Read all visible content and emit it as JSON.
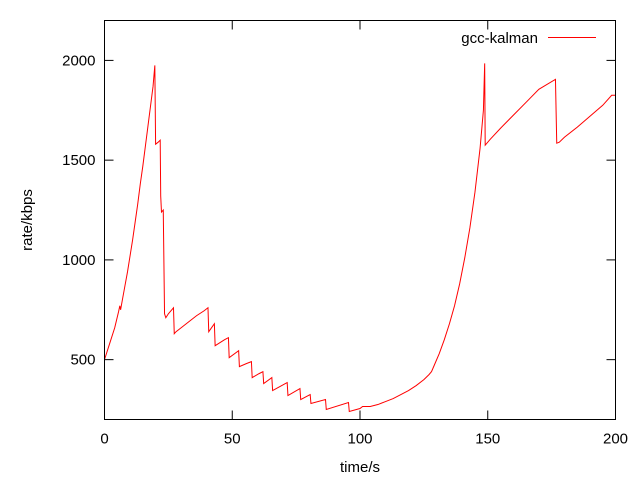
{
  "chart_data": {
    "type": "line",
    "title": "",
    "xlabel": "time/s",
    "ylabel": "rate/kbps",
    "xlim": [
      0,
      200
    ],
    "ylim": [
      200,
      2200
    ],
    "xticks": [
      0,
      50,
      100,
      150,
      200
    ],
    "yticks": [
      500,
      1000,
      1500,
      2000
    ],
    "grid": false,
    "legend_position": "top-right",
    "series": [
      {
        "name": "gcc-kalman",
        "color": "#ff0000",
        "points": [
          [
            0,
            500
          ],
          [
            2,
            580
          ],
          [
            4,
            660
          ],
          [
            5.5,
            740
          ],
          [
            6,
            770
          ],
          [
            6.3,
            750
          ],
          [
            7,
            800
          ],
          [
            8,
            870
          ],
          [
            9,
            940
          ],
          [
            10,
            1020
          ],
          [
            11,
            1100
          ],
          [
            12,
            1190
          ],
          [
            13,
            1280
          ],
          [
            14,
            1380
          ],
          [
            15,
            1470
          ],
          [
            16,
            1570
          ],
          [
            17,
            1670
          ],
          [
            18,
            1770
          ],
          [
            19,
            1870
          ],
          [
            19.7,
            1975
          ],
          [
            20,
            1580
          ],
          [
            21,
            1590
          ],
          [
            21.8,
            1600
          ],
          [
            22,
            1320
          ],
          [
            22.3,
            1240
          ],
          [
            23,
            1250
          ],
          [
            23.5,
            730
          ],
          [
            24,
            710
          ],
          [
            25,
            730
          ],
          [
            26,
            745
          ],
          [
            27,
            760
          ],
          [
            27.3,
            630
          ],
          [
            28,
            640
          ],
          [
            30,
            660
          ],
          [
            33,
            690
          ],
          [
            36,
            720
          ],
          [
            39,
            745
          ],
          [
            40.5,
            760
          ],
          [
            40.8,
            640
          ],
          [
            43,
            680
          ],
          [
            43.3,
            570
          ],
          [
            47,
            600
          ],
          [
            48.5,
            610
          ],
          [
            48.8,
            510
          ],
          [
            52.5,
            545
          ],
          [
            52.8,
            465
          ],
          [
            55.5,
            480
          ],
          [
            57.5,
            490
          ],
          [
            57.8,
            410
          ],
          [
            60.5,
            430
          ],
          [
            62,
            440
          ],
          [
            62.3,
            380
          ],
          [
            65.5,
            410
          ],
          [
            65.8,
            345
          ],
          [
            71.5,
            385
          ],
          [
            71.8,
            320
          ],
          [
            76.5,
            355
          ],
          [
            76.8,
            300
          ],
          [
            80.5,
            325
          ],
          [
            80.8,
            280
          ],
          [
            86.5,
            300
          ],
          [
            86.8,
            250
          ],
          [
            95.5,
            285
          ],
          [
            95.8,
            240
          ],
          [
            100,
            255
          ],
          [
            101,
            265
          ],
          [
            104,
            265
          ],
          [
            107,
            275
          ],
          [
            110,
            290
          ],
          [
            113,
            305
          ],
          [
            116,
            325
          ],
          [
            119,
            345
          ],
          [
            122,
            370
          ],
          [
            125,
            400
          ],
          [
            127,
            425
          ],
          [
            128,
            440
          ],
          [
            129,
            470
          ],
          [
            131,
            530
          ],
          [
            133,
            600
          ],
          [
            135,
            680
          ],
          [
            137,
            770
          ],
          [
            139,
            880
          ],
          [
            141,
            1010
          ],
          [
            143,
            1160
          ],
          [
            145,
            1340
          ],
          [
            147,
            1560
          ],
          [
            148.3,
            1750
          ],
          [
            148.8,
            1985
          ],
          [
            149,
            1575
          ],
          [
            151,
            1605
          ],
          [
            155,
            1660
          ],
          [
            160,
            1725
          ],
          [
            165,
            1790
          ],
          [
            170,
            1855
          ],
          [
            176.5,
            1905
          ],
          [
            177,
            1585
          ],
          [
            178,
            1590
          ],
          [
            180,
            1615
          ],
          [
            185,
            1665
          ],
          [
            190,
            1720
          ],
          [
            195,
            1775
          ],
          [
            198.5,
            1825
          ],
          [
            200,
            1825
          ]
        ]
      }
    ]
  }
}
